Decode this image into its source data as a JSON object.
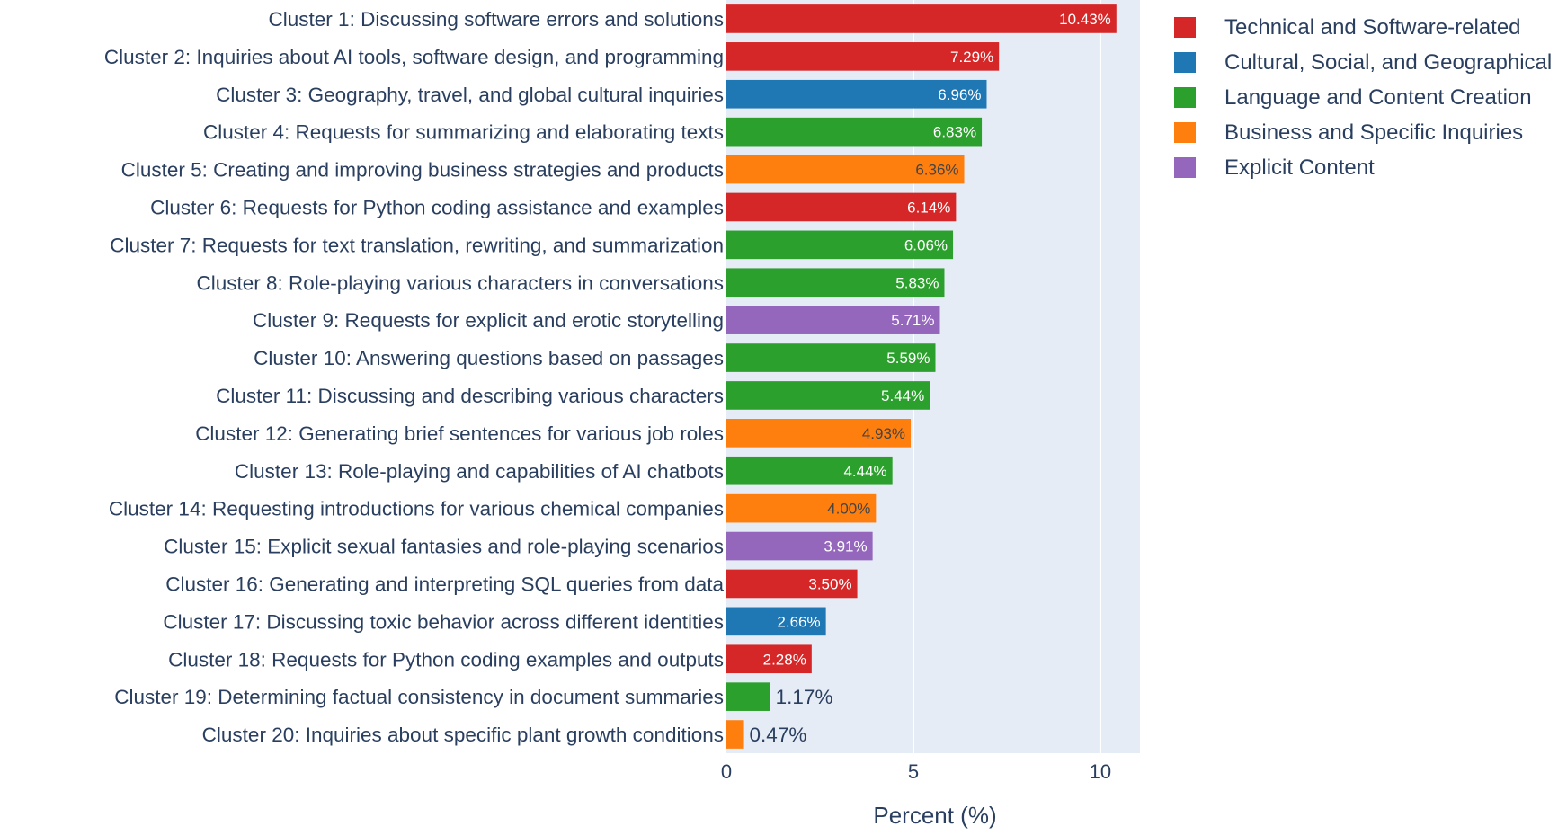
{
  "chart_data": {
    "type": "bar",
    "orientation": "horizontal",
    "title": "",
    "xlabel": "Percent (%)",
    "ylabel": "",
    "xlim": [
      0,
      11.06
    ],
    "xticks": [
      0,
      5,
      10
    ],
    "xtick_labels": [
      "0",
      "5",
      "10"
    ],
    "grid": true,
    "legend_position": "top-right",
    "categories": [
      "Cluster 1: Discussing software errors and solutions",
      "Cluster 2: Inquiries about AI tools, software design, and programming",
      "Cluster 3: Geography, travel, and global cultural inquiries",
      "Cluster 4: Requests for summarizing and elaborating texts",
      "Cluster 5: Creating and improving business strategies and products",
      "Cluster 6: Requests for Python coding assistance and examples",
      "Cluster 7: Requests for text translation, rewriting, and summarization",
      "Cluster 8: Role-playing various characters in conversations",
      "Cluster 9: Requests for explicit and erotic storytelling",
      "Cluster 10: Answering questions based on passages",
      "Cluster 11: Discussing and describing various characters",
      "Cluster 12: Generating brief sentences for various job roles",
      "Cluster 13: Role-playing and capabilities of AI chatbots",
      "Cluster 14: Requesting introductions for various chemical companies",
      "Cluster 15: Explicit sexual fantasies and role-playing scenarios",
      "Cluster 16: Generating and interpreting SQL queries from data",
      "Cluster 17: Discussing toxic behavior across different identities",
      "Cluster 18: Requests for Python coding examples and outputs",
      "Cluster 19: Determining factual consistency in document summaries",
      "Cluster 20: Inquiries about specific plant growth conditions"
    ],
    "values": [
      10.43,
      7.29,
      6.96,
      6.83,
      6.36,
      6.14,
      6.06,
      5.83,
      5.71,
      5.59,
      5.44,
      4.93,
      4.44,
      4.0,
      3.91,
      3.5,
      2.66,
      2.28,
      1.17,
      0.47
    ],
    "value_labels": [
      "10.43%",
      "7.29%",
      "6.96%",
      "6.83%",
      "6.36%",
      "6.14%",
      "6.06%",
      "5.83%",
      "5.71%",
      "5.59%",
      "5.44%",
      "4.93%",
      "4.44%",
      "4.00%",
      "3.91%",
      "3.50%",
      "2.66%",
      "2.28%",
      "1.17%",
      "0.47%"
    ],
    "bar_groups": [
      0,
      0,
      1,
      2,
      3,
      0,
      2,
      2,
      4,
      2,
      2,
      3,
      2,
      3,
      4,
      0,
      1,
      0,
      2,
      3
    ],
    "groups": [
      {
        "name": "Technical and Software-related",
        "color": "#d62728",
        "label_color": "#ffffff"
      },
      {
        "name": "Cultural, Social, and Geographical",
        "color": "#1f77b4",
        "label_color": "#ffffff"
      },
      {
        "name": "Language and Content Creation",
        "color": "#2ca02c",
        "label_color": "#ffffff"
      },
      {
        "name": "Business and Specific Inquiries",
        "color": "#ff7f0e",
        "label_color": "#444444"
      },
      {
        "name": "Explicit Content",
        "color": "#9467bd",
        "label_color": "#ffffff"
      }
    ],
    "plot_background": "#e5ecf6",
    "text_color": "#2a3f5f"
  }
}
